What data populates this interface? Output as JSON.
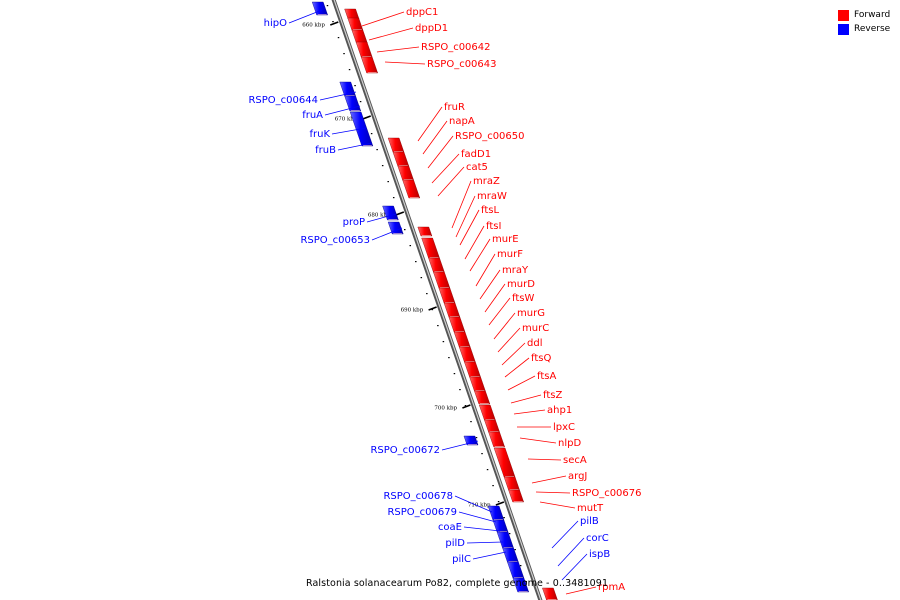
{
  "legend": {
    "forward_label": "Forward",
    "reverse_label": "Reverse",
    "forward_color": "#ff0000",
    "reverse_color": "#0000ff"
  },
  "caption": "Ralstonia solanacearum Po82, complete genome - 0..3481091",
  "ticks": [
    "660 kbp",
    "670 kbp",
    "680 kbp",
    "690 kbp",
    "700 kbp",
    "710 kbp"
  ],
  "genes": [
    {
      "name": "hipO",
      "strand": "reverse"
    },
    {
      "name": "dppC1",
      "strand": "forward"
    },
    {
      "name": "dppD1",
      "strand": "forward"
    },
    {
      "name": "RSPO_c00642",
      "strand": "forward"
    },
    {
      "name": "RSPO_c00643",
      "strand": "forward"
    },
    {
      "name": "RSPO_c00644",
      "strand": "reverse"
    },
    {
      "name": "fruA",
      "strand": "reverse"
    },
    {
      "name": "fruK",
      "strand": "reverse"
    },
    {
      "name": "fruB",
      "strand": "reverse"
    },
    {
      "name": "fruR",
      "strand": "forward"
    },
    {
      "name": "napA",
      "strand": "forward"
    },
    {
      "name": "RSPO_c00650",
      "strand": "forward"
    },
    {
      "name": "fadD1",
      "strand": "forward"
    },
    {
      "name": "cat5",
      "strand": "forward"
    },
    {
      "name": "mraZ",
      "strand": "forward"
    },
    {
      "name": "mraW",
      "strand": "forward"
    },
    {
      "name": "ftsL",
      "strand": "forward"
    },
    {
      "name": "ftsI",
      "strand": "forward"
    },
    {
      "name": "murE",
      "strand": "forward"
    },
    {
      "name": "murF",
      "strand": "forward"
    },
    {
      "name": "mraY",
      "strand": "forward"
    },
    {
      "name": "murD",
      "strand": "forward"
    },
    {
      "name": "ftsW",
      "strand": "forward"
    },
    {
      "name": "murG",
      "strand": "forward"
    },
    {
      "name": "murC",
      "strand": "forward"
    },
    {
      "name": "ddl",
      "strand": "forward"
    },
    {
      "name": "ftsQ",
      "strand": "forward"
    },
    {
      "name": "ftsA",
      "strand": "forward"
    },
    {
      "name": "ftsZ",
      "strand": "forward"
    },
    {
      "name": "ahp1",
      "strand": "forward"
    },
    {
      "name": "lpxC",
      "strand": "forward"
    },
    {
      "name": "nlpD",
      "strand": "forward"
    },
    {
      "name": "secA",
      "strand": "forward"
    },
    {
      "name": "argJ",
      "strand": "forward"
    },
    {
      "name": "RSPO_c00676",
      "strand": "forward"
    },
    {
      "name": "mutT",
      "strand": "forward"
    },
    {
      "name": "proP",
      "strand": "reverse"
    },
    {
      "name": "RSPO_c00653",
      "strand": "reverse"
    },
    {
      "name": "RSPO_c00672",
      "strand": "reverse"
    },
    {
      "name": "RSPO_c00678",
      "strand": "reverse"
    },
    {
      "name": "RSPO_c00679",
      "strand": "reverse"
    },
    {
      "name": "coaE",
      "strand": "reverse"
    },
    {
      "name": "pilD",
      "strand": "reverse"
    },
    {
      "name": "pilC",
      "strand": "reverse"
    },
    {
      "name": "pilB",
      "strand": "reverse"
    },
    {
      "name": "corC",
      "strand": "reverse"
    },
    {
      "name": "ispB",
      "strand": "reverse"
    },
    {
      "name": "rpmA",
      "strand": "forward"
    }
  ]
}
